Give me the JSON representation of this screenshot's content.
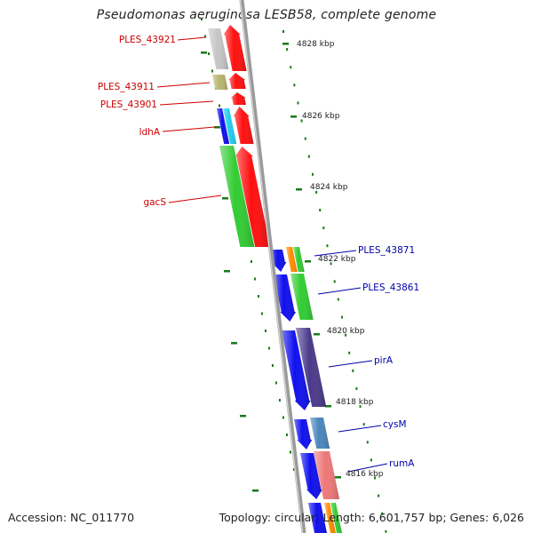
{
  "header": {
    "title": "Pseudomonas aeruginosa LESB58, complete genome"
  },
  "footer": {
    "accession": "Accession: NC_011770",
    "summary": "Topology: circular; Length: 6,601,757 bp; Genes: 6,026"
  },
  "colors": {
    "backbone": "#8a8a8a",
    "tick": "#1a7a1a",
    "left_label": "#cc0000",
    "right_label": "#0000aa",
    "red": "#ff1010",
    "gray": "#c6c6c6",
    "olive": "#b8b56c",
    "blue": "#1010ee",
    "cyan": "#22ccee",
    "green": "#33cc33",
    "orange": "#ff8c00",
    "purple": "#4a3a8a",
    "steel": "#4a86bb",
    "salmon": "#ee7777"
  },
  "kbp_labels": [
    "4828 kbp",
    "4826 kbp",
    "4824 kbp",
    "4822 kbp",
    "4820 kbp",
    "4818 kbp",
    "4816 kbp"
  ],
  "gene_labels_left": [
    "PLES_43921",
    "PLES_43911",
    "PLES_43901",
    "ldhA",
    "gacS"
  ],
  "gene_labels_right": [
    "PLES_43871",
    "PLES_43861",
    "pirA",
    "cysM",
    "rumA"
  ]
}
